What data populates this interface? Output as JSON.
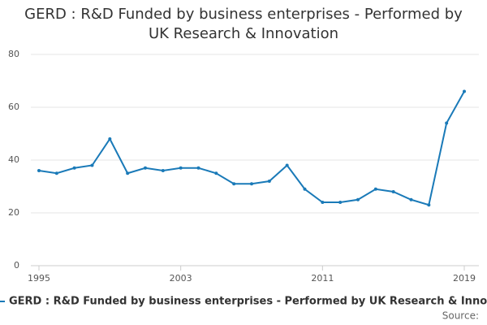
{
  "chart_data": {
    "type": "line",
    "title": "GERD : R&D Funded by business enterprises - Performed by UK Research & Innovation",
    "x": [
      1995,
      1996,
      1997,
      1998,
      1999,
      2000,
      2001,
      2002,
      2003,
      2004,
      2005,
      2006,
      2007,
      2008,
      2009,
      2010,
      2011,
      2012,
      2013,
      2014,
      2015,
      2016,
      2017,
      2018,
      2019
    ],
    "series": [
      {
        "name": "GERD : R&D Funded by business enterprises - Performed by UK Research & Innovation",
        "color": "#1a7ab8",
        "values": [
          36,
          35,
          37,
          38,
          48,
          35,
          37,
          36,
          37,
          37,
          35,
          31,
          31,
          32,
          38,
          29,
          24,
          24,
          25,
          29,
          28,
          25,
          23,
          54,
          66
        ]
      }
    ],
    "xlim": [
      1995,
      2019
    ],
    "xticks": [
      1995,
      2003,
      2011,
      2019
    ],
    "ylim": [
      0,
      80
    ],
    "yticks": [
      0,
      20,
      40,
      60,
      80
    ],
    "grid": true,
    "source": "Source:"
  }
}
